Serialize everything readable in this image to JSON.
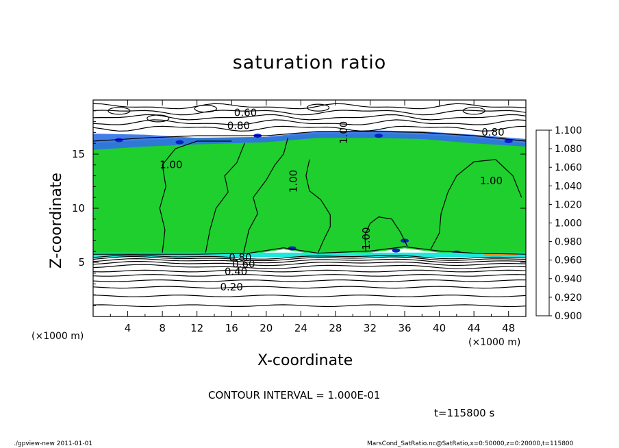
{
  "chart_data": {
    "type": "heatmap",
    "title": "saturation ratio",
    "xlabel": "X-coordinate",
    "ylabel": "Z-coordinate",
    "x_unit": "(×1000 m)",
    "y_unit": "(×1000 m)",
    "xlim": [
      0,
      50
    ],
    "ylim": [
      0,
      20
    ],
    "x_ticks": [
      4,
      8,
      12,
      16,
      20,
      24,
      28,
      32,
      36,
      40,
      44,
      48
    ],
    "y_ticks": [
      5,
      10,
      15
    ],
    "colorbar": {
      "levels": [
        0.9,
        0.92,
        0.94,
        0.96,
        0.98,
        1.0,
        1.02,
        1.04,
        1.06,
        1.08,
        1.1
      ],
      "labels": [
        "0.900",
        "0.920",
        "0.940",
        "0.960",
        "0.980",
        "1.000",
        "1.020",
        "1.040",
        "1.060",
        "1.080",
        "1.100"
      ],
      "colors": [
        "#6a1fb0",
        "#0a12a8",
        "#1f4fe0",
        "#2ea2ef",
        "#1fe8dc",
        "#1ecf2e",
        "#7ee21c",
        "#f0d81e",
        "#f08c18",
        "#f23a20",
        "#f58a8a"
      ]
    },
    "shaded_regions": [
      {
        "value_range": "0.98-1.00",
        "z_range": [
          5.6,
          16.5
        ],
        "color": "#1ecf2e"
      },
      {
        "value_range": "0.90-0.96",
        "z_range": [
          16.0,
          16.8
        ],
        "color": "#2f6fe8"
      }
    ],
    "contour_labels": [
      {
        "text": "0.60",
        "x": 17.6,
        "z": 18.8
      },
      {
        "text": "0.80",
        "x": 16.8,
        "z": 17.6
      },
      {
        "text": "1.00",
        "x": 29.0,
        "z": 17.0
      },
      {
        "text": "0.80",
        "x": 46.2,
        "z": 17.0
      },
      {
        "text": "1.00",
        "x": 9.0,
        "z": 14.0
      },
      {
        "text": "1.00",
        "x": 23.2,
        "z": 12.5
      },
      {
        "text": "1.00",
        "x": 46.0,
        "z": 12.5
      },
      {
        "text": "1.00",
        "x": 31.6,
        "z": 7.2
      },
      {
        "text": "0.80",
        "x": 17.0,
        "z": 5.4
      },
      {
        "text": "0.60",
        "x": 17.4,
        "z": 4.8
      },
      {
        "text": "0.40",
        "x": 16.5,
        "z": 4.1
      },
      {
        "text": "0.20",
        "x": 16.0,
        "z": 2.7
      }
    ],
    "contour_interval_label": "CONTOUR INTERVAL = 1.000E-01",
    "time_label": "t=115800 s"
  },
  "footer": {
    "left": "./gpview-new   2011-01-01",
    "right": "MarsCond_SatRatio.nc@SatRatio,x=0:50000,z=0:20000,t=115800"
  }
}
